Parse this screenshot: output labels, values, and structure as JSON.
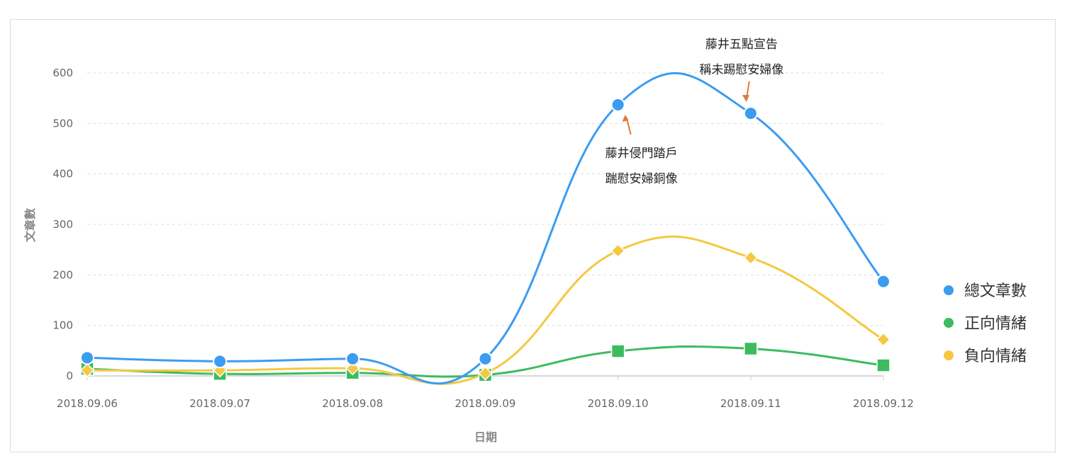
{
  "chart_data": {
    "type": "line",
    "title": "",
    "xlabel": "日期",
    "ylabel": "文章數",
    "categories": [
      "2018.09.06",
      "2018.09.07",
      "2018.09.08",
      "2018.09.09",
      "2018.09.10",
      "2018.09.11",
      "2018.09.12"
    ],
    "ylim": [
      0,
      600
    ],
    "yticks": [
      0,
      100,
      200,
      300,
      400,
      500,
      600
    ],
    "grid": true,
    "legend_position": "right",
    "series": [
      {
        "name": "總文章數",
        "values": [
          36,
          29,
          34,
          34,
          537,
          520,
          187
        ],
        "color": "#3b9cf1",
        "marker": "circle"
      },
      {
        "name": "正向情緒",
        "values": [
          14,
          4,
          6,
          2,
          49,
          54,
          21
        ],
        "color": "#3dbb60",
        "marker": "square"
      },
      {
        "name": "負向情緒",
        "values": [
          11,
          11,
          15,
          5,
          248,
          234,
          72
        ],
        "color": "#f5c842",
        "marker": "diamond"
      }
    ],
    "annotations": [
      {
        "category": "2018.09.10",
        "series": "總文章數",
        "lines": [
          "藤井侵門踏戶",
          "踹慰安婦銅像"
        ],
        "placement": "below"
      },
      {
        "category": "2018.09.11",
        "series": "總文章數",
        "lines": [
          "藤井五點宣告",
          "稱未踢慰安婦像"
        ],
        "placement": "above"
      }
    ],
    "annotation_arrow_color": "#e07a3a"
  }
}
